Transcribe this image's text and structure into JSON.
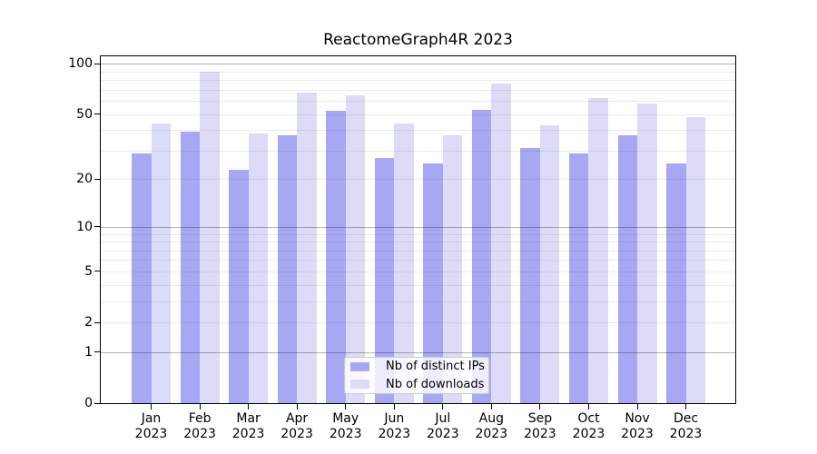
{
  "chart_data": {
    "type": "bar",
    "title": "ReactomeGraph4R 2023",
    "categories": [
      "Jan 2023",
      "Feb 2023",
      "Mar 2023",
      "Apr 2023",
      "May 2023",
      "Jun 2023",
      "Jul 2023",
      "Aug 2023",
      "Sep 2023",
      "Oct 2023",
      "Nov 2023",
      "Dec 2023"
    ],
    "series": [
      {
        "name": "Nb of distinct IPs",
        "color": "#a7a7f4",
        "values": [
          29,
          39,
          23,
          37,
          52,
          27,
          25,
          53,
          31,
          29,
          37,
          25
        ]
      },
      {
        "name": "Nb of downloads",
        "color": "#dcdcf8",
        "values": [
          44,
          90,
          38,
          67,
          65,
          44,
          37,
          76,
          43,
          62,
          58,
          48
        ]
      }
    ],
    "yscale": "log1p",
    "ylim": [
      0,
      112
    ],
    "grid": "horizontal; faint lines at 2-9 and 20-90, darker lines at decades 1, 10, 100",
    "legend_position": "lower center"
  },
  "y_axis": {
    "tick_values": [
      100,
      50,
      20,
      10,
      5,
      2,
      1,
      0
    ],
    "tick_labels": [
      "100",
      "50",
      "20",
      "10",
      "5",
      "2",
      "1",
      "0"
    ]
  },
  "x_axis": {
    "tick_labels": [
      [
        "Jan",
        "2023"
      ],
      [
        "Feb",
        "2023"
      ],
      [
        "Mar",
        "2023"
      ],
      [
        "Apr",
        "2023"
      ],
      [
        "May",
        "2023"
      ],
      [
        "Jun",
        "2023"
      ],
      [
        "Jul",
        "2023"
      ],
      [
        "Aug",
        "2023"
      ],
      [
        "Sep",
        "2023"
      ],
      [
        "Oct",
        "2023"
      ],
      [
        "Nov",
        "2023"
      ],
      [
        "Dec",
        "2023"
      ]
    ]
  },
  "legend": {
    "items": [
      {
        "label": "Nb of distinct IPs"
      },
      {
        "label": "Nb of downloads"
      }
    ]
  },
  "colors": {
    "bar_distinct_ips": "#a7a7f4",
    "bar_downloads": "#dcdcf8",
    "grid_decade": "#b4b4b4",
    "grid_minor": "#ebebeb",
    "axis_frame": "#000000",
    "legend_border": "#cccccc",
    "background": "#ffffff"
  }
}
